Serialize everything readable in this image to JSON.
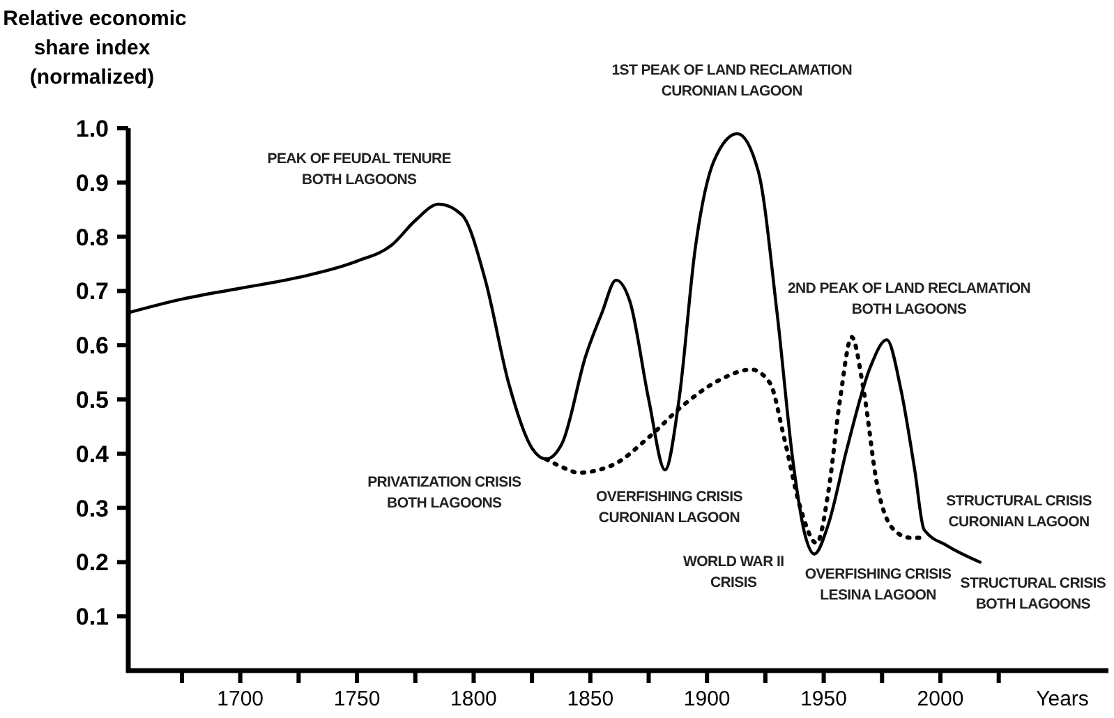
{
  "chart_data": {
    "type": "line",
    "ylabel": "Relative economic\nshare index\n(normalized)",
    "xlabel": "Years",
    "xlim": [
      1652,
      2072
    ],
    "ylim": [
      0,
      1.0
    ],
    "xticks": [
      {
        "value": 1675,
        "label": null
      },
      1700,
      {
        "value": 1725,
        "label": null
      },
      1750,
      {
        "value": 1775,
        "label": null
      },
      1800,
      {
        "value": 1825,
        "label": null
      },
      1850,
      {
        "value": 1875,
        "label": null
      },
      1900,
      {
        "value": 1925,
        "label": null
      },
      1950,
      {
        "value": 1975,
        "label": null
      },
      2000,
      {
        "value": 2025,
        "label": null
      }
    ],
    "yticks": [
      0.1,
      0.2,
      0.3,
      0.4,
      0.5,
      0.6,
      0.7,
      0.8,
      0.9,
      {
        "value": 1,
        "label": "1.0"
      }
    ],
    "grid": false,
    "marker": "none",
    "series": [
      {
        "color": "#000000",
        "line_style": "solid",
        "x": [
          1652,
          1675,
          1700,
          1725,
          1750,
          1765,
          1775,
          1785,
          1795,
          1805,
          1815,
          1825,
          1831,
          1838,
          1848,
          1855,
          1861,
          1867,
          1875,
          1882,
          1888,
          1895,
          1903,
          1913,
          1922,
          1930,
          1937,
          1942,
          1946,
          1952,
          1960,
          1970,
          1977,
          1983,
          1989,
          1993,
          2003,
          2017
        ],
        "values": [
          0.66,
          0.685,
          0.705,
          0.725,
          0.755,
          0.785,
          0.83,
          0.86,
          0.84,
          0.72,
          0.53,
          0.41,
          0.39,
          0.42,
          0.58,
          0.66,
          0.72,
          0.68,
          0.5,
          0.37,
          0.5,
          0.78,
          0.94,
          0.99,
          0.92,
          0.66,
          0.38,
          0.25,
          0.215,
          0.27,
          0.41,
          0.56,
          0.61,
          0.52,
          0.37,
          0.26,
          0.23,
          0.2
        ]
      },
      {
        "color": "#000000",
        "line_style": "dotted",
        "x": [
          1831,
          1838,
          1845,
          1860,
          1875,
          1890,
          1905,
          1919,
          1927,
          1933,
          1940,
          1947,
          1952,
          1957,
          1962,
          1967,
          1973,
          1980,
          1987,
          1993
        ],
        "values": [
          0.39,
          0.375,
          0.365,
          0.38,
          0.43,
          0.49,
          0.535,
          0.555,
          0.53,
          0.43,
          0.3,
          0.235,
          0.33,
          0.5,
          0.615,
          0.52,
          0.34,
          0.26,
          0.245,
          0.245
        ]
      }
    ],
    "annotations": [
      {
        "text": "PEAK OF FEUDAL TENURE\nBOTH LAGOONS",
        "x": 1785,
        "y": 0.86
      },
      {
        "text": "PRIVATIZATION CRISIS\nBOTH LAGOONS",
        "x": 1831,
        "y": 0.39
      },
      {
        "text": "1ST PEAK OF LAND RECLAMATION\nCURONIAN LAGOON",
        "x": 1913,
        "y": 0.99
      },
      {
        "text": "OVERFISHING CRISIS\nCURONIAN LAGOON",
        "x": 1882,
        "y": 0.37
      },
      {
        "text": "2ND PEAK OF LAND RECLAMATION\nBOTH LAGOONS",
        "x": 1977,
        "y": 0.61
      },
      {
        "text": "WORLD WAR II\nCRISIS",
        "x": 1946,
        "y": 0.215
      },
      {
        "text": "OVERFISHING CRISIS\nLESINA LAGOON",
        "x": 1947,
        "y": 0.235
      },
      {
        "text": "STRUCTURAL CRISIS\nCURONIAN LAGOON",
        "x": 1993,
        "y": 0.26
      },
      {
        "text": "STRUCTURAL CRISIS\nBOTH LAGOONS",
        "x": 2017,
        "y": 0.2
      }
    ]
  }
}
